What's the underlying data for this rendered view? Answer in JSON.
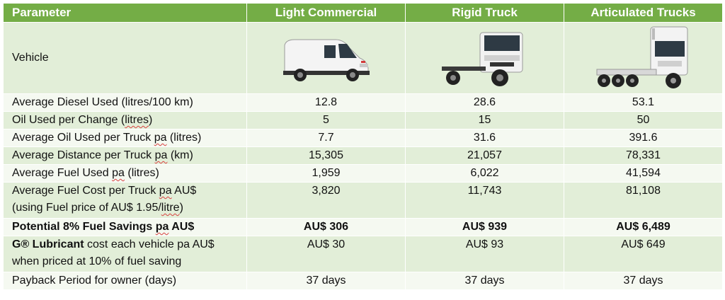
{
  "header": {
    "parameter": "Parameter",
    "light_commercial": "Light Commercial",
    "rigid_truck": "Rigid Truck",
    "articulated_trucks": "Articulated Trucks"
  },
  "vehicle_row": {
    "label": "Vehicle",
    "images": [
      "white-van-image",
      "rigid-truck-image",
      "articulated-truck-image"
    ]
  },
  "rows": {
    "diesel": {
      "label": "Average Diesel Used (litres/100 km)",
      "values": [
        "12.8",
        "28.6",
        "53.1"
      ]
    },
    "oil_change": {
      "label_pre": "Oil Used per Change (",
      "label_squig": "litres",
      "label_post": ")",
      "values": [
        "5",
        "15",
        "50"
      ]
    },
    "oil_pa": {
      "label_pre": "Average Oil Used per Truck ",
      "label_squig": "pa",
      "label_post": " (litres)",
      "values": [
        "7.7",
        "31.6",
        "391.6"
      ]
    },
    "distance": {
      "label_pre": "Average Distance per Truck ",
      "label_squig": "pa",
      "label_post": " (km)",
      "values": [
        "15,305",
        "21,057",
        "78,331"
      ]
    },
    "fuel_used": {
      "label_pre": "Average Fuel Used ",
      "label_squig": "pa",
      "label_post": " (litres)",
      "values": [
        "1,959",
        "6,022",
        "41,594"
      ]
    },
    "fuel_cost": {
      "label_line1_pre": "Average Fuel Cost per Truck ",
      "label_line1_squig": "pa",
      "label_line1_post": " AU$",
      "label_line2_pre": "(using Fuel price of AU$ 1.95/",
      "label_line2_squig": "litre",
      "label_line2_post": ")",
      "values": [
        "3,820",
        "11,743",
        "81,108"
      ]
    },
    "savings": {
      "label_pre": "Potential 8% Fuel Savings ",
      "label_squig": "pa",
      "label_post": " AU$",
      "values": [
        "AU$ 306",
        "AU$ 939",
        "AU$ 6,489"
      ]
    },
    "lubricant": {
      "label_bold": "G® Lubricant",
      "label_line1_rest": " cost each vehicle pa AU$",
      "label_line2": "when priced at 10% of fuel saving",
      "values": [
        "AU$ 30",
        "AU$ 93",
        "AU$ 649"
      ]
    },
    "payback": {
      "label": "Payback Period for owner (days)",
      "values": [
        "37 days",
        "37 days",
        "37 days"
      ]
    }
  },
  "colors": {
    "header_bg": "#74ad46",
    "band_dark": "#e2eed8",
    "band_light": "#f5f9f1",
    "spellcheck_underline": "#d94040"
  }
}
